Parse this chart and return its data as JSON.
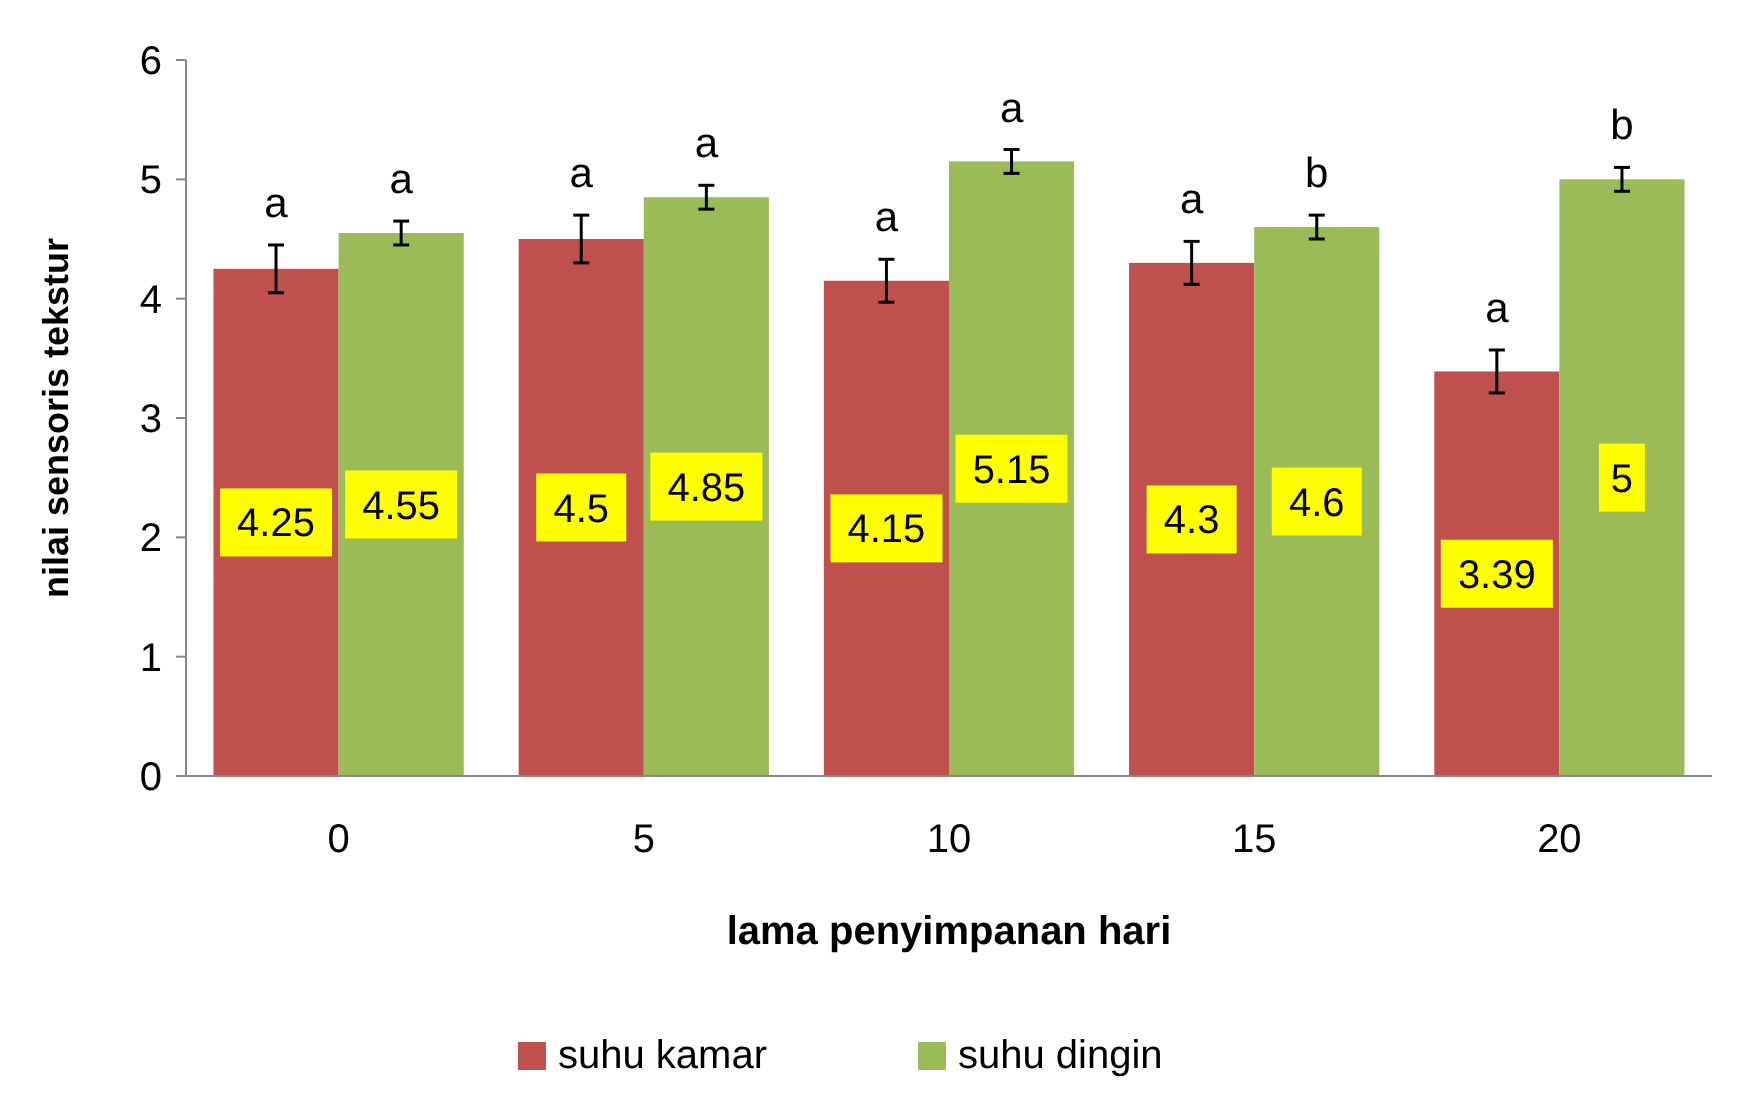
{
  "chart_data": {
    "type": "bar",
    "xlabel": "lama penyimpanan hari",
    "ylabel": "nilai sensoris tekstur",
    "categories": [
      "0",
      "5",
      "10",
      "15",
      "20"
    ],
    "series": [
      {
        "name": "suhu kamar",
        "color": "#c0504d",
        "values": [
          4.25,
          4.5,
          4.15,
          4.3,
          3.39
        ],
        "errors": [
          0.2,
          0.2,
          0.18,
          0.18,
          0.18
        ]
      },
      {
        "name": "suhu dingin",
        "color": "#9bbb59",
        "values": [
          4.55,
          4.85,
          5.15,
          4.6,
          5
        ],
        "errors": [
          0.1,
          0.1,
          0.1,
          0.1,
          0.1
        ]
      }
    ],
    "ylim": [
      0,
      6
    ],
    "yticks": [
      0,
      1,
      2,
      3,
      4,
      5,
      6
    ],
    "grid": false,
    "legend": "bottom",
    "data_labels": true,
    "annotations": [
      "a",
      "a",
      "a",
      "a",
      "a",
      "a",
      "a",
      "b",
      "a",
      "b"
    ]
  }
}
